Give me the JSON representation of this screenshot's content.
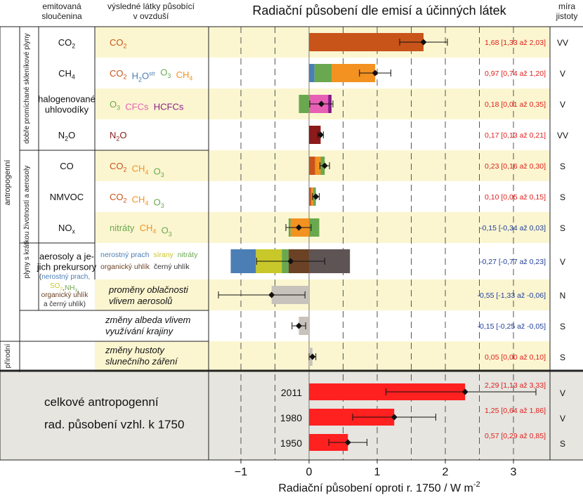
{
  "header": {
    "col_emitted_1": "emitovaná",
    "col_emitted_2": "sloučenina",
    "col_result_1": "výsledné látky působící",
    "col_result_2": "v ovzduší",
    "title": "Radiační působení dle emisí a účinných látek",
    "col_conf_1": "míra",
    "col_conf_2": "jistoty"
  },
  "groups": {
    "anthropogenic": "antropogenní",
    "natural": "přírodní",
    "well_mixed": "dobře promíchané skleníkové plyny",
    "short_lived": "plyny s krátkou životností a aerosoly"
  },
  "rows": [
    {
      "emitted": [
        "CO|2"
      ],
      "species": [
        {
          "text": "CO|2",
          "color": "#c8541a"
        }
      ],
      "segments": [
        {
          "from": 0,
          "to": 1.68,
          "color": "#c8541a"
        }
      ],
      "best": 1.68,
      "lo": 1.33,
      "hi": 2.03,
      "label": "1,68 [1,33 až 2,03]",
      "label_color": "#e0201c",
      "confidence": "VV"
    },
    {
      "emitted": [
        "CH|4"
      ],
      "species": [
        {
          "text": "CO|2",
          "color": "#c8541a"
        },
        {
          "text": "H|2|O|str",
          "color": "#4a7eb5"
        },
        {
          "text": "O|3",
          "color": "#6aa84f"
        },
        {
          "text": "CH|4",
          "color": "#f39121"
        }
      ],
      "segments": [
        {
          "from": 0,
          "to": 0.08,
          "color": "#4a7eb5"
        },
        {
          "from": 0.08,
          "to": 0.33,
          "color": "#6aa84f"
        },
        {
          "from": 0.33,
          "to": 0.97,
          "color": "#f39121"
        }
      ],
      "best": 0.97,
      "lo": 0.74,
      "hi": 1.2,
      "label": "0,97 [0,74 až 1,20]",
      "label_color": "#e0201c",
      "confidence": "V"
    },
    {
      "emitted": [
        "halogenované",
        "uhlovodíky"
      ],
      "species": [
        {
          "text": "O|3",
          "color": "#6aa84f"
        },
        {
          "text": "CFCs",
          "color": "#e660b4"
        },
        {
          "text": "HCFCs",
          "color": "#8b1a8b"
        }
      ],
      "segments": [
        {
          "from": -0.15,
          "to": 0,
          "color": "#6aa84f"
        },
        {
          "from": 0,
          "to": 0.28,
          "color": "#e660b4"
        },
        {
          "from": 0.28,
          "to": 0.33,
          "color": "#8b1a8b"
        }
      ],
      "best": 0.18,
      "lo": 0.01,
      "hi": 0.35,
      "label": "0,18 [0,01 až 0,35]",
      "label_color": "#e0201c",
      "confidence": "V"
    },
    {
      "emitted": [
        "N|2|O"
      ],
      "species": [
        {
          "text": "N|2|O",
          "color": "#8b1a1a"
        }
      ],
      "segments": [
        {
          "from": 0,
          "to": 0.17,
          "color": "#8b1a1a"
        }
      ],
      "best": 0.17,
      "lo": 0.13,
      "hi": 0.21,
      "label": "0,17 [0,13 až 0,21]",
      "label_color": "#e0201c",
      "confidence": "VV"
    },
    {
      "emitted": [
        "CO"
      ],
      "species": [
        {
          "text": "CO|2",
          "color": "#c8541a"
        },
        {
          "text": "CH|4",
          "color": "#f39121"
        },
        {
          "text": "O|3",
          "color": "#6aa84f"
        }
      ],
      "segments": [
        {
          "from": 0,
          "to": 0.09,
          "color": "#c8541a"
        },
        {
          "from": 0.09,
          "to": 0.17,
          "color": "#f39121"
        },
        {
          "from": 0.17,
          "to": 0.23,
          "color": "#6aa84f"
        }
      ],
      "best": 0.23,
      "lo": 0.16,
      "hi": 0.3,
      "label": "0,23 [0,16 až 0,30]",
      "label_color": "#e0201c",
      "confidence": "S"
    },
    {
      "emitted": [
        "NMVOC"
      ],
      "species": [
        {
          "text": "CO|2",
          "color": "#c8541a"
        },
        {
          "text": "CH|4",
          "color": "#f39121"
        },
        {
          "text": "O|3",
          "color": "#6aa84f"
        }
      ],
      "segments": [
        {
          "from": 0,
          "to": 0.03,
          "color": "#c8541a"
        },
        {
          "from": 0.03,
          "to": 0.06,
          "color": "#f39121"
        },
        {
          "from": 0.06,
          "to": 0.1,
          "color": "#6aa84f"
        }
      ],
      "best": 0.1,
      "lo": 0.05,
      "hi": 0.15,
      "label": "0,10 [0,05 až 0,15]",
      "label_color": "#e0201c",
      "confidence": "S"
    },
    {
      "emitted": [
        "NO|x"
      ],
      "species": [
        {
          "text": "nitráty",
          "color": "#6aa84f"
        },
        {
          "text": "CH|4",
          "color": "#f39121"
        },
        {
          "text": "O|3",
          "color": "#6aa84f"
        }
      ],
      "segments": [
        {
          "from": -0.3,
          "to": -0.27,
          "color": "#6aa84f"
        },
        {
          "from": -0.27,
          "to": 0,
          "color": "#f39121"
        },
        {
          "from": 0,
          "to": 0.15,
          "color": "#6aa84f"
        }
      ],
      "best": -0.15,
      "lo": -0.34,
      "hi": 0.03,
      "label": "-0,15 [-0,34 až 0,03]",
      "label_color": "#1f3f9a",
      "confidence": "S"
    },
    {
      "emitted": [
        "aerosoly a je-",
        "jich prekursory"
      ],
      "species": [],
      "segments": [
        {
          "from": -1.15,
          "to": -0.78,
          "color": "#4a7eb5"
        },
        {
          "from": -0.78,
          "to": -0.4,
          "color": "#c8c82a"
        },
        {
          "from": -0.4,
          "to": -0.3,
          "color": "#6aa84f"
        },
        {
          "from": -0.3,
          "to": 0,
          "color": "#6b4226"
        },
        {
          "from": 0,
          "to": 0.6,
          "color": "#5f5454"
        }
      ],
      "best": -0.27,
      "lo": -0.77,
      "hi": 0.23,
      "label": "-0,27 [-0,77 až 0,23]",
      "label_color": "#1f3f9a",
      "confidence": "V"
    },
    {
      "emitted": [],
      "species": [],
      "segments": [
        {
          "from": -0.55,
          "to": 0,
          "color": "#c8c2bc"
        }
      ],
      "best": -0.55,
      "lo": -1.33,
      "hi": -0.06,
      "label": "-0,55 [-1,33 až -0,06]",
      "label_color": "#1f3f9a",
      "confidence": "N"
    },
    {
      "emitted": [],
      "species": [],
      "segments": [
        {
          "from": -0.15,
          "to": 0,
          "color": "#c8c2bc"
        }
      ],
      "best": -0.15,
      "lo": -0.25,
      "hi": -0.05,
      "label": "-0,15 [-0,25 až -0,05]",
      "label_color": "#1f3f9a",
      "confidence": "S"
    },
    {
      "emitted": [],
      "species": [],
      "segments": [
        {
          "from": 0,
          "to": 0.05,
          "color": "#c8c2bc"
        }
      ],
      "best": 0.05,
      "lo": 0.0,
      "hi": 0.1,
      "label": "0,05 [0,00 až 0,10]",
      "label_color": "#e0201c",
      "confidence": "S"
    }
  ],
  "aerosol_legend": {
    "line1": [
      {
        "text": "nerostný prach",
        "color": "#4a7eb5"
      },
      {
        "text": "sírany",
        "color": "#c8c82a"
      },
      {
        "text": "nitráty",
        "color": "#6aa84f"
      }
    ],
    "line2": [
      {
        "text": "organický uhlík",
        "color": "#6b4226"
      },
      {
        "text": "černý uhlík",
        "color": "#333333"
      }
    ],
    "precursors": [
      [
        {
          "text": "(",
          "color": "#333333"
        },
        {
          "text": "nerostný prach,",
          "color": "#4a7eb5"
        }
      ],
      [
        {
          "text": "SO|2",
          "color": "#c8c82a"
        },
        {
          "text": ",",
          "color": "#333333"
        },
        {
          "text": "NH|3",
          "color": "#6aa84f"
        },
        {
          "text": ",",
          "color": "#333333"
        }
      ],
      [
        {
          "text": "organický uhlík",
          "color": "#6b4226"
        }
      ],
      [
        {
          "text": "a černý uhlík",
          "color": "#333333"
        },
        {
          "text": ")",
          "color": "#333333"
        }
      ]
    ]
  },
  "italic_labels": {
    "cloud": [
      "proměny oblačnosti",
      "vlivem aerosolů"
    ],
    "albedo": [
      "změny albeda vlivem",
      "využívání krajiny"
    ],
    "solar": [
      "změny hustoty",
      "slunečního záření"
    ]
  },
  "totals": {
    "label_1": "celkové antropogenní",
    "label_2": "rad. působení vzhl. k 1750",
    "bar_color": "#ff2020",
    "items": [
      {
        "year": "2011",
        "best": 2.29,
        "lo": 1.13,
        "hi": 3.33,
        "label": "2,29 [1,13 až 3,33]",
        "confidence": "V"
      },
      {
        "year": "1980",
        "best": 1.25,
        "lo": 0.64,
        "hi": 1.86,
        "label": "1,25 [0,64 až 1,86]",
        "confidence": "V"
      },
      {
        "year": "1950",
        "best": 0.57,
        "lo": 0.29,
        "hi": 0.85,
        "label": "0,57 [0,29 až 0,85]",
        "confidence": "S"
      }
    ]
  },
  "chart_data": {
    "type": "bar",
    "title": "Radiační působení dle emisí a účinných látek",
    "xlabel": "Radiační působení oproti r. 1750  /  W m-2",
    "xlim": [
      -1.5,
      3.5
    ],
    "x_ticks": [
      -1,
      0,
      1,
      2,
      3
    ],
    "x_tick_labels": [
      "−1",
      "0",
      "1",
      "2",
      "3"
    ],
    "grid": "dashed vertical lines at -1, -0.5, 0.5, 1, 1.5, 2, 2.5, 3",
    "categories": [
      "CO2",
      "CH4",
      "halogenované uhlovodíky",
      "N2O",
      "CO",
      "NMVOC",
      "NOx",
      "aerosoly a jejich prekursory",
      "proměny oblačnosti vlivem aerosolů",
      "změny albeda vlivem využívání krajiny",
      "změny hustoty slunečního záření",
      "2011",
      "1980",
      "1950"
    ],
    "values": [
      1.68,
      0.97,
      0.18,
      0.17,
      0.23,
      0.1,
      -0.15,
      -0.27,
      -0.55,
      -0.15,
      0.05,
      2.29,
      1.25,
      0.57
    ],
    "lower": [
      1.33,
      0.74,
      0.01,
      0.13,
      0.16,
      0.05,
      -0.34,
      -0.77,
      -1.33,
      -0.25,
      0.0,
      1.13,
      0.64,
      0.29
    ],
    "upper": [
      2.03,
      1.2,
      0.35,
      0.21,
      0.3,
      0.15,
      0.03,
      0.23,
      -0.06,
      -0.05,
      0.1,
      3.33,
      1.86,
      0.85
    ],
    "confidence": [
      "VV",
      "V",
      "V",
      "VV",
      "S",
      "S",
      "S",
      "V",
      "N",
      "S",
      "S",
      "V",
      "V",
      "S"
    ]
  }
}
